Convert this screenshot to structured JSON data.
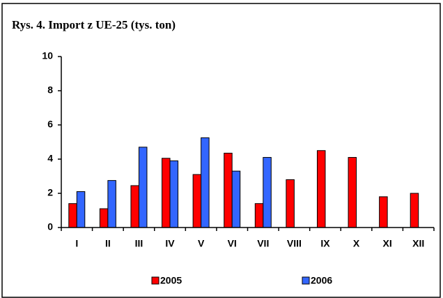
{
  "chart_data": {
    "type": "bar",
    "title": "Rys. 4. Import z UE-25 (tys. ton)",
    "categories": [
      "I",
      "II",
      "III",
      "IV",
      "V",
      "VI",
      "VII",
      "VIII",
      "IX",
      "X",
      "XI",
      "XII"
    ],
    "series": [
      {
        "name": "2005",
        "color": "#ff0000",
        "values": [
          1.4,
          1.1,
          2.45,
          4.05,
          3.1,
          4.35,
          1.4,
          2.8,
          4.5,
          4.1,
          1.8,
          2.0
        ]
      },
      {
        "name": "2006",
        "color": "#3366ff",
        "values": [
          2.1,
          2.75,
          4.7,
          3.9,
          5.25,
          3.3,
          4.1,
          null,
          null,
          null,
          null,
          null
        ]
      }
    ],
    "ylim": [
      0,
      10
    ],
    "yticks": [
      0,
      2,
      4,
      6,
      8,
      10
    ],
    "grid": false,
    "legend": "bottom"
  }
}
